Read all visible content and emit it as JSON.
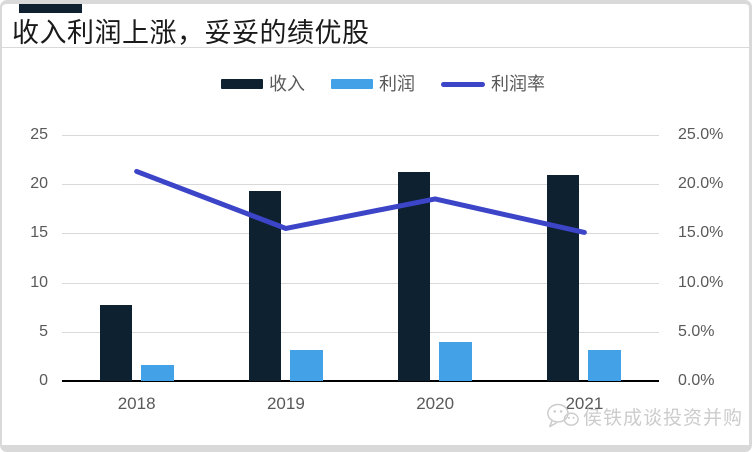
{
  "page": {
    "title": "收入利润上涨，妥妥的绩优股",
    "accent_color": "#0f2130"
  },
  "watermark": {
    "text": "侯铁成谈投资并购",
    "icon": "wechat-logo",
    "color": "#cccccc"
  },
  "chart_data": {
    "type": "combo",
    "categories": [
      "2018",
      "2019",
      "2020",
      "2021"
    ],
    "series": [
      {
        "name": "收入",
        "type": "bar",
        "axis": "left",
        "color": "#0e2130",
        "values": [
          7.7,
          19.3,
          21.2,
          20.9
        ]
      },
      {
        "name": "利润",
        "type": "bar",
        "axis": "left",
        "color": "#43a1e8",
        "values": [
          1.6,
          3.1,
          4.0,
          3.2
        ]
      },
      {
        "name": "利润率",
        "type": "line",
        "axis": "right",
        "color": "#3c44c8",
        "unit": "%",
        "values": [
          21.3,
          15.5,
          18.5,
          15.1
        ]
      }
    ],
    "left_axis": {
      "min": 0,
      "max": 25,
      "step": 5,
      "tick_labels": [
        "0",
        "5",
        "10",
        "15",
        "20",
        "25"
      ]
    },
    "right_axis": {
      "min": 0,
      "max": 25,
      "step": 5,
      "tick_labels": [
        "0.0%",
        "5.0%",
        "10.0%",
        "15.0%",
        "20.0%",
        "25.0%"
      ]
    },
    "grid": true,
    "legend_position": "top",
    "axis_label_color": "#595959",
    "gridline_color": "#d9d9d9"
  }
}
